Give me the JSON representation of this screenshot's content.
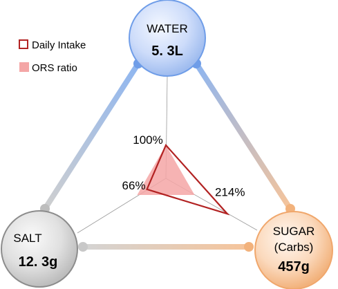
{
  "chart_data": {
    "type": "radar",
    "title": "",
    "legend": {
      "placement": "top-left",
      "entries": [
        "Daily Intake",
        "ORS ratio"
      ]
    },
    "axes": [
      {
        "name": "WATER",
        "value_label": "5. 3L"
      },
      {
        "name": "SUGAR",
        "name2": "(Carbs)",
        "value_label": "457g"
      },
      {
        "name": "SALT",
        "value_label": "12. 3g"
      }
    ],
    "series": [
      {
        "name": "Daily Intake",
        "values": [
          100,
          214,
          66
        ],
        "labels": [
          "100%",
          "214%",
          "66%"
        ],
        "style": "outline"
      },
      {
        "name": "ORS ratio",
        "values": [
          100,
          100,
          100
        ],
        "style": "filled"
      }
    ],
    "colors": {
      "daily_intake": "#b22222",
      "ors_ratio": "#f4a6a6",
      "water": "#6f9de8",
      "sugar": "#f2b27c",
      "salt": "#c8c8c8"
    }
  }
}
